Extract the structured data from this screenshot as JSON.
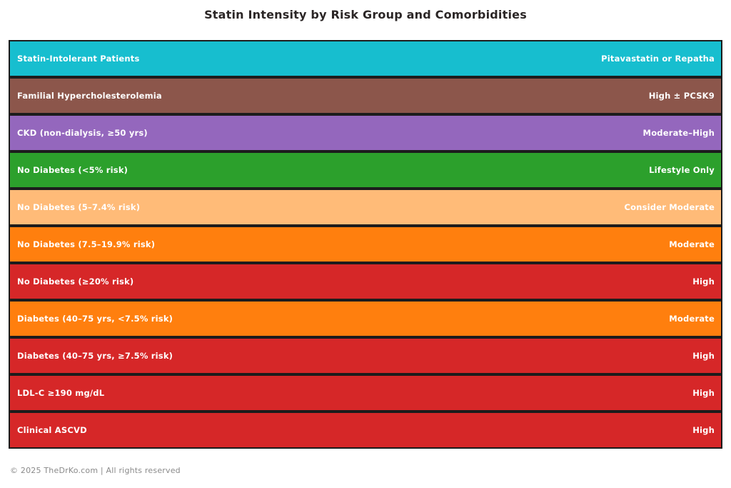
{
  "title": "Statin Intensity by Risk Group and Comorbidities",
  "footer": "© 2025 TheDrKo.com | All rights reserved",
  "colors": {
    "background": "#ffffff",
    "title_text": "#2b2626",
    "bar_text": "#ffffff",
    "bar_edge": "#1c1c1c",
    "footer_text": "#8a8a8a",
    "cyan": "#17becf",
    "brown": "#8c564b",
    "purple": "#9467bd",
    "green": "#2ca02c",
    "light_orange": "#ffbb78",
    "orange": "#ff7f0e",
    "red": "#d62728"
  },
  "chart_data": {
    "type": "bar",
    "orientation": "horizontal",
    "title": "Statin Intensity by Risk Group and Comorbidities",
    "note": "All bars span full chart width (uniform length); value is categorical statin intensity shown as right-aligned label",
    "legend": "none",
    "grid": "off",
    "rows": [
      {
        "group": "Statin-Intolerant Patients",
        "intensity": "Pitavastatin or Repatha",
        "color": "#17becf"
      },
      {
        "group": "Familial Hypercholesterolemia",
        "intensity": "High ± PCSK9",
        "color": "#8c564b"
      },
      {
        "group": "CKD (non-dialysis, ≥50 yrs)",
        "intensity": "Moderate–High",
        "color": "#9467bd"
      },
      {
        "group": "No Diabetes (<5% risk)",
        "intensity": "Lifestyle Only",
        "color": "#2ca02c"
      },
      {
        "group": "No Diabetes (5–7.4% risk)",
        "intensity": "Consider Moderate",
        "color": "#ffbb78"
      },
      {
        "group": "No Diabetes (7.5–19.9% risk)",
        "intensity": "Moderate",
        "color": "#ff7f0e"
      },
      {
        "group": "No Diabetes (≥20% risk)",
        "intensity": "High",
        "color": "#d62728"
      },
      {
        "group": "Diabetes (40–75 yrs, <7.5% risk)",
        "intensity": "Moderate",
        "color": "#ff7f0e"
      },
      {
        "group": "Diabetes (40–75 yrs, ≥7.5% risk)",
        "intensity": "High",
        "color": "#d62728"
      },
      {
        "group": "LDL-C ≥190 mg/dL",
        "intensity": "High",
        "color": "#d62728"
      },
      {
        "group": "Clinical ASCVD",
        "intensity": "High",
        "color": "#d62728"
      }
    ]
  }
}
